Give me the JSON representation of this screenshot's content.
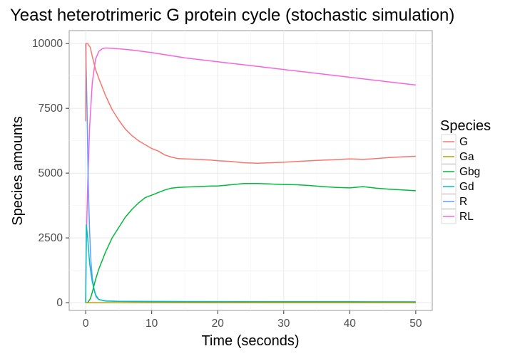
{
  "chart_data": {
    "type": "line",
    "title": "Yeast heterotrimeric G protein cycle (stochastic simulation)",
    "xlabel": "Time (seconds)",
    "ylabel": "Species amounts",
    "xlim": [
      -2.5,
      52.5
    ],
    "ylim": [
      -300,
      10500
    ],
    "xticks": [
      0,
      10,
      20,
      30,
      40,
      50
    ],
    "yticks": [
      0,
      2500,
      5000,
      7500,
      10000
    ],
    "xtick_labels": [
      "0",
      "10",
      "20",
      "30",
      "40",
      "50"
    ],
    "ytick_labels": [
      "0",
      "2500",
      "5000",
      "7500",
      "10000"
    ],
    "grid": true,
    "legend": {
      "title": "Species",
      "position": "right"
    },
    "series": [
      {
        "name": "G",
        "color": "#f8766d",
        "points": [
          [
            0,
            7000
          ],
          [
            0.05,
            10000
          ],
          [
            0.3,
            10000
          ],
          [
            0.7,
            9850
          ],
          [
            1,
            9500
          ],
          [
            1.5,
            9000
          ],
          [
            2,
            8650
          ],
          [
            3,
            8000
          ],
          [
            4,
            7450
          ],
          [
            5,
            7050
          ],
          [
            6,
            6700
          ],
          [
            7,
            6450
          ],
          [
            8,
            6250
          ],
          [
            9,
            6100
          ],
          [
            10,
            5950
          ],
          [
            11,
            5850
          ],
          [
            12,
            5700
          ],
          [
            13,
            5620
          ],
          [
            14,
            5560
          ],
          [
            15,
            5550
          ],
          [
            17,
            5530
          ],
          [
            19,
            5500
          ],
          [
            20,
            5480
          ],
          [
            22,
            5450
          ],
          [
            24,
            5400
          ],
          [
            26,
            5380
          ],
          [
            28,
            5400
          ],
          [
            30,
            5420
          ],
          [
            32,
            5450
          ],
          [
            34,
            5480
          ],
          [
            36,
            5500
          ],
          [
            38,
            5520
          ],
          [
            40,
            5550
          ],
          [
            42,
            5530
          ],
          [
            44,
            5560
          ],
          [
            46,
            5600
          ],
          [
            48,
            5630
          ],
          [
            50,
            5650
          ]
        ]
      },
      {
        "name": "Ga",
        "color": "#b79f00",
        "points": [
          [
            0,
            0
          ],
          [
            2,
            0
          ],
          [
            10,
            0
          ],
          [
            20,
            0
          ],
          [
            30,
            0
          ],
          [
            40,
            0
          ],
          [
            50,
            0
          ]
        ]
      },
      {
        "name": "Gbg",
        "color": "#00ba38",
        "points": [
          [
            0,
            0
          ],
          [
            0.3,
            0
          ],
          [
            0.7,
            150
          ],
          [
            1,
            400
          ],
          [
            1.5,
            900
          ],
          [
            2,
            1300
          ],
          [
            3,
            1950
          ],
          [
            4,
            2500
          ],
          [
            5,
            2900
          ],
          [
            6,
            3300
          ],
          [
            7,
            3600
          ],
          [
            8,
            3850
          ],
          [
            9,
            4050
          ],
          [
            10,
            4150
          ],
          [
            11,
            4250
          ],
          [
            12,
            4350
          ],
          [
            13,
            4420
          ],
          [
            14,
            4450
          ],
          [
            15,
            4460
          ],
          [
            17,
            4480
          ],
          [
            19,
            4500
          ],
          [
            20,
            4500
          ],
          [
            22,
            4550
          ],
          [
            24,
            4600
          ],
          [
            26,
            4600
          ],
          [
            28,
            4580
          ],
          [
            30,
            4560
          ],
          [
            32,
            4550
          ],
          [
            34,
            4520
          ],
          [
            36,
            4480
          ],
          [
            38,
            4450
          ],
          [
            40,
            4430
          ],
          [
            42,
            4480
          ],
          [
            44,
            4420
          ],
          [
            46,
            4380
          ],
          [
            48,
            4350
          ],
          [
            50,
            4320
          ]
        ]
      },
      {
        "name": "Gd",
        "color": "#00bfc4",
        "points": [
          [
            0,
            0
          ],
          [
            0.1,
            3000
          ],
          [
            0.3,
            2500
          ],
          [
            0.6,
            1500
          ],
          [
            1,
            800
          ],
          [
            1.5,
            300
          ],
          [
            2,
            120
          ],
          [
            3,
            60
          ],
          [
            5,
            50
          ],
          [
            10,
            45
          ],
          [
            20,
            40
          ],
          [
            30,
            35
          ],
          [
            40,
            35
          ],
          [
            50,
            30
          ]
        ]
      },
      {
        "name": "R",
        "color": "#619cff",
        "points": [
          [
            0,
            10000
          ],
          [
            0.2,
            7500
          ],
          [
            0.4,
            4500
          ],
          [
            0.6,
            2700
          ],
          [
            0.8,
            1600
          ],
          [
            1,
            950
          ],
          [
            1.3,
            450
          ],
          [
            1.6,
            220
          ],
          [
            2,
            120
          ],
          [
            3,
            70
          ],
          [
            5,
            50
          ],
          [
            10,
            40
          ],
          [
            20,
            35
          ],
          [
            30,
            30
          ],
          [
            40,
            30
          ],
          [
            50,
            30
          ]
        ]
      },
      {
        "name": "RL",
        "color": "#f564e3",
        "points": [
          [
            0,
            0
          ],
          [
            0.1,
            2500
          ],
          [
            0.3,
            4500
          ],
          [
            0.6,
            6800
          ],
          [
            1,
            8500
          ],
          [
            1.5,
            9400
          ],
          [
            2,
            9700
          ],
          [
            2.5,
            9800
          ],
          [
            3,
            9830
          ],
          [
            5,
            9800
          ],
          [
            7,
            9750
          ],
          [
            10,
            9650
          ],
          [
            15,
            9450
          ],
          [
            20,
            9300
          ],
          [
            25,
            9150
          ],
          [
            30,
            9000
          ],
          [
            35,
            8850
          ],
          [
            40,
            8700
          ],
          [
            45,
            8550
          ],
          [
            50,
            8400
          ]
        ]
      }
    ]
  }
}
